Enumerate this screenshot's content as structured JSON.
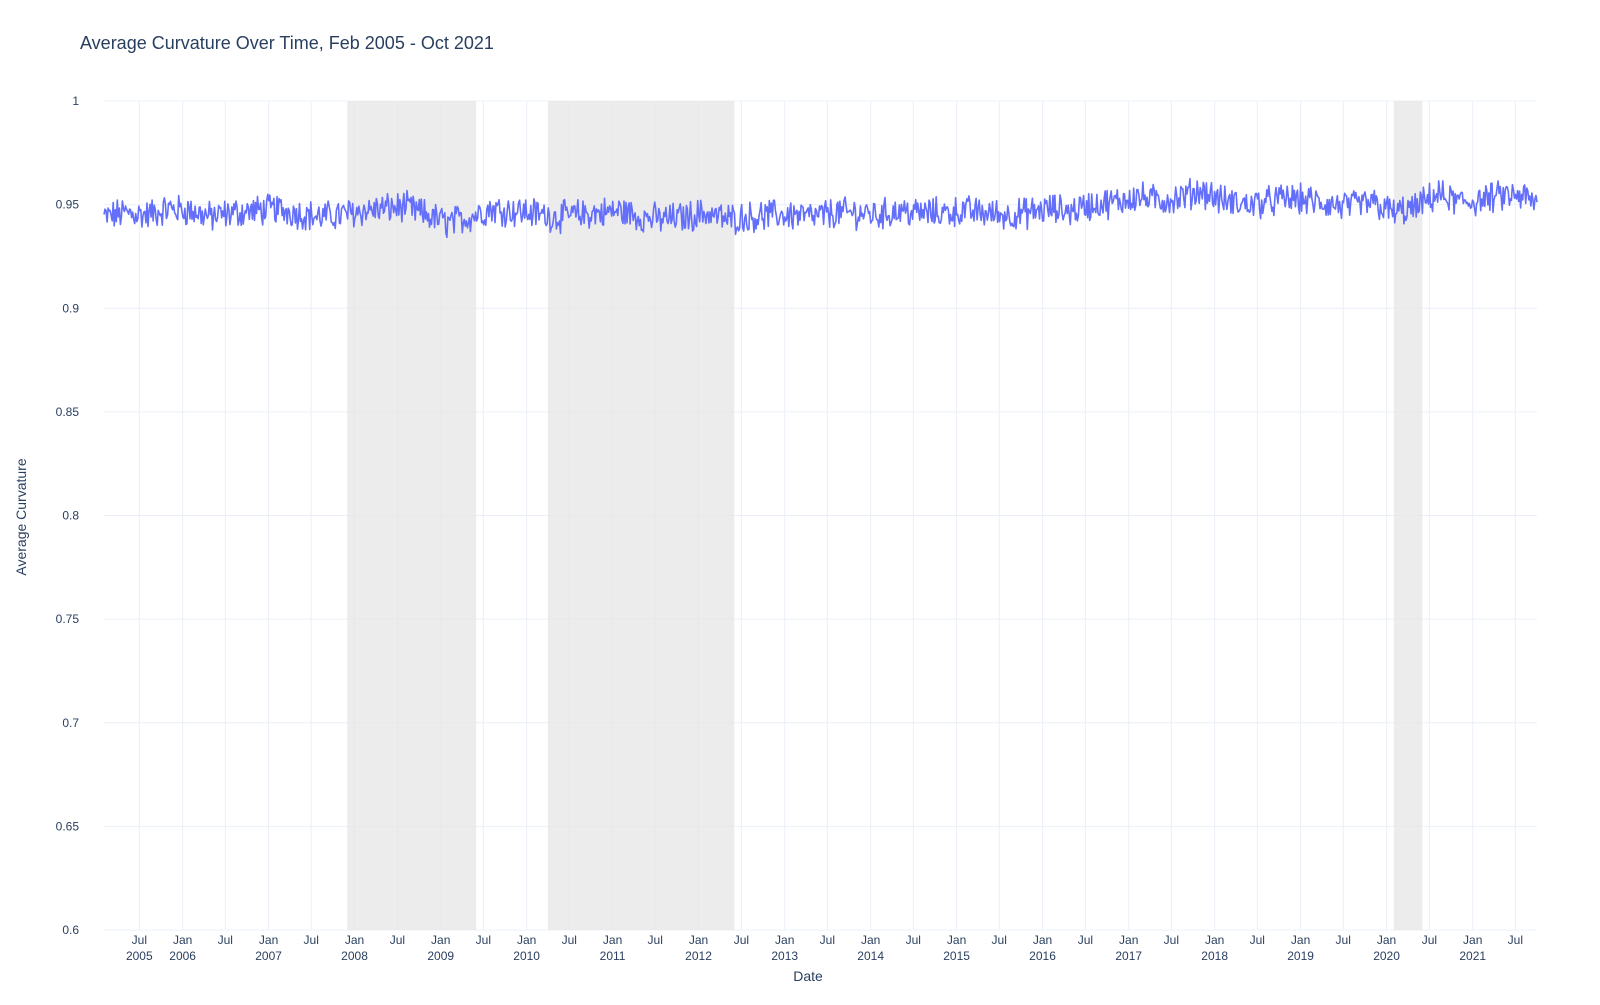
{
  "chart_data": {
    "type": "line",
    "title": "Average Curvature Over Time, Feb 2005 - Oct 2021",
    "xlabel": "Date",
    "ylabel": "Average Curvature",
    "xlim": [
      "2005-02-01",
      "2021-10-01"
    ],
    "ylim": [
      0.6,
      1
    ],
    "grid": true,
    "line_color": "#636efa",
    "shaded_color": "#e5e5e5",
    "y_ticks": [
      {
        "value": 0.6,
        "label": "0.6"
      },
      {
        "value": 0.65,
        "label": "0.65"
      },
      {
        "value": 0.7,
        "label": "0.7"
      },
      {
        "value": 0.75,
        "label": "0.75"
      },
      {
        "value": 0.8,
        "label": "0.8"
      },
      {
        "value": 0.85,
        "label": "0.85"
      },
      {
        "value": 0.9,
        "label": "0.9"
      },
      {
        "value": 0.95,
        "label": "0.95"
      },
      {
        "value": 1,
        "label": "1"
      }
    ],
    "x_ticks": [
      {
        "date": "2005-07-01",
        "label": "Jul",
        "sublabel": "2005"
      },
      {
        "date": "2006-01-01",
        "label": "Jan",
        "sublabel": "2006"
      },
      {
        "date": "2006-07-01",
        "label": "Jul",
        "sublabel": ""
      },
      {
        "date": "2007-01-01",
        "label": "Jan",
        "sublabel": "2007"
      },
      {
        "date": "2007-07-01",
        "label": "Jul",
        "sublabel": ""
      },
      {
        "date": "2008-01-01",
        "label": "Jan",
        "sublabel": "2008"
      },
      {
        "date": "2008-07-01",
        "label": "Jul",
        "sublabel": ""
      },
      {
        "date": "2009-01-01",
        "label": "Jan",
        "sublabel": "2009"
      },
      {
        "date": "2009-07-01",
        "label": "Jul",
        "sublabel": ""
      },
      {
        "date": "2010-01-01",
        "label": "Jan",
        "sublabel": "2010"
      },
      {
        "date": "2010-07-01",
        "label": "Jul",
        "sublabel": ""
      },
      {
        "date": "2011-01-01",
        "label": "Jan",
        "sublabel": "2011"
      },
      {
        "date": "2011-07-01",
        "label": "Jul",
        "sublabel": ""
      },
      {
        "date": "2012-01-01",
        "label": "Jan",
        "sublabel": "2012"
      },
      {
        "date": "2012-07-01",
        "label": "Jul",
        "sublabel": ""
      },
      {
        "date": "2013-01-01",
        "label": "Jan",
        "sublabel": "2013"
      },
      {
        "date": "2013-07-01",
        "label": "Jul",
        "sublabel": ""
      },
      {
        "date": "2014-01-01",
        "label": "Jan",
        "sublabel": "2014"
      },
      {
        "date": "2014-07-01",
        "label": "Jul",
        "sublabel": ""
      },
      {
        "date": "2015-01-01",
        "label": "Jan",
        "sublabel": "2015"
      },
      {
        "date": "2015-07-01",
        "label": "Jul",
        "sublabel": ""
      },
      {
        "date": "2016-01-01",
        "label": "Jan",
        "sublabel": "2016"
      },
      {
        "date": "2016-07-01",
        "label": "Jul",
        "sublabel": ""
      },
      {
        "date": "2017-01-01",
        "label": "Jan",
        "sublabel": "2017"
      },
      {
        "date": "2017-07-01",
        "label": "Jul",
        "sublabel": ""
      },
      {
        "date": "2018-01-01",
        "label": "Jan",
        "sublabel": "2018"
      },
      {
        "date": "2018-07-01",
        "label": "Jul",
        "sublabel": ""
      },
      {
        "date": "2019-01-01",
        "label": "Jan",
        "sublabel": "2019"
      },
      {
        "date": "2019-07-01",
        "label": "Jul",
        "sublabel": ""
      },
      {
        "date": "2020-01-01",
        "label": "Jan",
        "sublabel": "2020"
      },
      {
        "date": "2020-07-01",
        "label": "Jul",
        "sublabel": ""
      },
      {
        "date": "2021-01-01",
        "label": "Jan",
        "sublabel": "2021"
      },
      {
        "date": "2021-07-01",
        "label": "Jul",
        "sublabel": ""
      }
    ],
    "shaded_periods": [
      {
        "start": "2007-12-01",
        "end": "2009-06-01"
      },
      {
        "start": "2010-04-01",
        "end": "2012-06-01"
      },
      {
        "start": "2020-02-01",
        "end": "2020-06-01"
      }
    ],
    "series": [
      {
        "x": [
          "2005-02-01",
          "2005-05-01",
          "2005-08-01",
          "2005-11-01",
          "2006-02-01",
          "2006-05-01",
          "2006-08-01",
          "2006-11-01",
          "2007-02-01",
          "2007-05-01",
          "2007-08-01",
          "2007-11-01",
          "2008-02-01",
          "2008-05-01",
          "2008-08-01",
          "2008-11-01",
          "2009-02-01",
          "2009-05-01",
          "2009-08-01",
          "2009-11-01",
          "2010-02-01",
          "2010-05-01",
          "2010-08-01",
          "2010-11-01",
          "2011-02-01",
          "2011-05-01",
          "2011-08-01",
          "2011-11-01",
          "2012-02-01",
          "2012-05-01",
          "2012-08-01",
          "2012-11-01",
          "2013-02-01",
          "2013-05-01",
          "2013-08-01",
          "2013-11-01",
          "2014-02-01",
          "2014-05-01",
          "2014-08-01",
          "2014-11-01",
          "2015-02-01",
          "2015-05-01",
          "2015-08-01",
          "2015-11-01",
          "2016-02-01",
          "2016-05-01",
          "2016-08-01",
          "2016-11-01",
          "2017-02-01",
          "2017-05-01",
          "2017-08-01",
          "2017-11-01",
          "2018-02-01",
          "2018-05-01",
          "2018-08-01",
          "2018-11-01",
          "2019-02-01",
          "2019-05-01",
          "2019-08-01",
          "2019-11-01",
          "2020-02-01",
          "2020-05-01",
          "2020-08-01",
          "2020-11-01",
          "2021-02-01",
          "2021-05-01",
          "2021-08-01",
          "2021-10-01"
        ],
        "y": [
          0.944,
          0.946,
          0.945,
          0.948,
          0.947,
          0.944,
          0.946,
          0.947,
          0.948,
          0.946,
          0.944,
          0.945,
          0.947,
          0.948,
          0.949,
          0.945,
          0.941,
          0.944,
          0.948,
          0.947,
          0.946,
          0.944,
          0.945,
          0.946,
          0.947,
          0.944,
          0.943,
          0.944,
          0.946,
          0.943,
          0.944,
          0.945,
          0.945,
          0.944,
          0.946,
          0.946,
          0.945,
          0.947,
          0.946,
          0.946,
          0.947,
          0.946,
          0.945,
          0.946,
          0.948,
          0.947,
          0.95,
          0.951,
          0.954,
          0.952,
          0.953,
          0.957,
          0.952,
          0.95,
          0.951,
          0.953,
          0.952,
          0.95,
          0.949,
          0.951,
          0.946,
          0.948,
          0.955,
          0.951,
          0.952,
          0.954,
          0.954,
          0.95
        ]
      }
    ]
  }
}
